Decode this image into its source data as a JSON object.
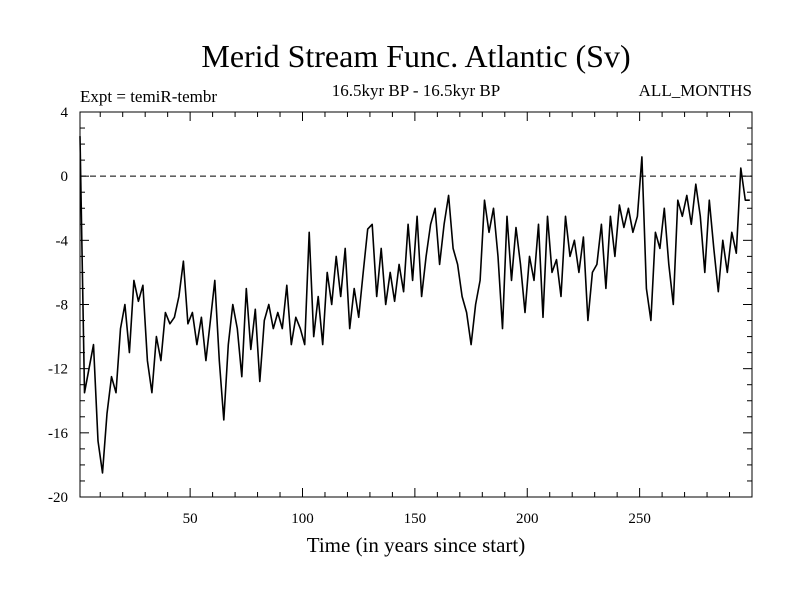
{
  "chart_data": {
    "type": "line",
    "title": "Merid Stream Func. Atlantic (Sv)",
    "subtitle_left": "Expt = temiR-tembr",
    "subtitle_center": "16.5kyr BP - 16.5kyr BP",
    "subtitle_right": "ALL_MONTHS",
    "xlabel": "Time (in years since start)",
    "ylabel": "",
    "xlim": [
      1,
      300
    ],
    "ylim": [
      -20,
      4
    ],
    "x_ticks": [
      50,
      100,
      150,
      200,
      250
    ],
    "y_ticks": [
      4,
      0,
      -4,
      -8,
      -12,
      -16,
      -20
    ],
    "reference_line": {
      "y": 0,
      "style": "dashed"
    },
    "series": [
      {
        "name": "Merid Stream Func. Atlantic",
        "x": [
          1,
          3,
          5,
          7,
          9,
          11,
          13,
          15,
          17,
          19,
          21,
          23,
          25,
          27,
          29,
          31,
          33,
          35,
          37,
          39,
          41,
          43,
          45,
          47,
          49,
          51,
          53,
          55,
          57,
          59,
          61,
          63,
          65,
          67,
          69,
          71,
          73,
          75,
          77,
          79,
          81,
          83,
          85,
          87,
          89,
          91,
          93,
          95,
          97,
          99,
          101,
          103,
          105,
          107,
          109,
          111,
          113,
          115,
          117,
          119,
          121,
          123,
          125,
          127,
          129,
          131,
          133,
          135,
          137,
          139,
          141,
          143,
          145,
          147,
          149,
          151,
          153,
          155,
          157,
          159,
          161,
          163,
          165,
          167,
          169,
          171,
          173,
          175,
          177,
          179,
          181,
          183,
          185,
          187,
          189,
          191,
          193,
          195,
          197,
          199,
          201,
          203,
          205,
          207,
          209,
          211,
          213,
          215,
          217,
          219,
          221,
          223,
          225,
          227,
          229,
          231,
          233,
          235,
          237,
          239,
          241,
          243,
          245,
          247,
          249,
          251,
          253,
          255,
          257,
          259,
          261,
          263,
          265,
          267,
          269,
          271,
          273,
          275,
          277,
          279,
          281,
          283,
          285,
          287,
          289,
          291,
          293,
          295,
          297,
          299
        ],
        "values": [
          2.5,
          -13.5,
          -12.0,
          -10.5,
          -16.5,
          -18.5,
          -14.8,
          -12.5,
          -13.5,
          -9.5,
          -8.0,
          -11.0,
          -6.5,
          -7.8,
          -6.8,
          -11.5,
          -13.5,
          -10.0,
          -11.5,
          -8.5,
          -9.2,
          -8.8,
          -7.5,
          -5.3,
          -9.2,
          -8.5,
          -10.5,
          -8.8,
          -11.5,
          -9.0,
          -6.5,
          -11.5,
          -15.2,
          -10.5,
          -8.0,
          -9.5,
          -12.5,
          -7.0,
          -10.8,
          -8.3,
          -12.8,
          -9.0,
          -8.0,
          -9.5,
          -8.5,
          -9.5,
          -6.8,
          -10.5,
          -8.8,
          -9.5,
          -10.5,
          -3.5,
          -10.0,
          -7.5,
          -10.5,
          -6.0,
          -8.0,
          -5.0,
          -7.5,
          -4.5,
          -9.5,
          -7.0,
          -8.8,
          -6.0,
          -3.3,
          -3.0,
          -7.5,
          -4.5,
          -8.0,
          -6.0,
          -7.8,
          -5.5,
          -7.2,
          -3.0,
          -6.5,
          -2.5,
          -7.5,
          -5.0,
          -3.0,
          -2.0,
          -5.5,
          -3.0,
          -1.2,
          -4.5,
          -5.5,
          -7.5,
          -8.5,
          -10.5,
          -8.0,
          -6.5,
          -1.5,
          -3.5,
          -2.0,
          -5.0,
          -9.5,
          -2.5,
          -6.5,
          -3.2,
          -5.5,
          -8.5,
          -5.0,
          -6.5,
          -3.0,
          -8.8,
          -2.5,
          -6.0,
          -5.2,
          -7.5,
          -2.5,
          -5.0,
          -4.0,
          -6.0,
          -3.8,
          -9.0,
          -6.0,
          -5.5,
          -3.0,
          -7.0,
          -2.5,
          -5.0,
          -1.8,
          -3.2,
          -2.0,
          -3.5,
          -2.5,
          1.2,
          -7.0,
          -9.0,
          -3.5,
          -4.5,
          -2.0,
          -5.5,
          -8.0,
          -1.5,
          -2.5,
          -1.2,
          -3.0,
          -0.5,
          -2.5,
          -6.0,
          -1.5,
          -4.5,
          -7.2,
          -4.0,
          -6.0,
          -3.5,
          -4.8,
          0.5,
          -1.5,
          -1.5
        ]
      }
    ]
  }
}
